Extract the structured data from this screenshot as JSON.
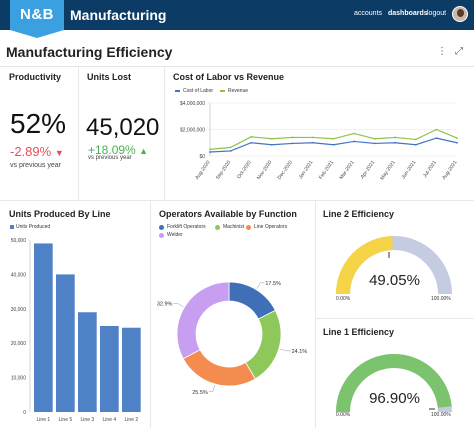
{
  "header": {
    "logo": "N&B",
    "brand": "Manufacturing",
    "nav": [
      "accounts",
      "dashboards",
      "logout"
    ],
    "active_nav": "dashboards",
    "bg_color": "#0c3b66",
    "logo_color": "#3aa0e0"
  },
  "page": {
    "title": "Manufacturing Efficiency",
    "more_icon": "⋮",
    "expand_icon": "⤢"
  },
  "productivity": {
    "title": "Productivity",
    "value": "52%",
    "delta": "-2.89%",
    "arrow": "▼",
    "note": "vs previous year"
  },
  "units_lost": {
    "title": "Units Lost",
    "value": "45,020",
    "delta": "+18.09%",
    "arrow": "▲",
    "note": "vs previous year"
  },
  "labor_chart": {
    "title": "Cost of Labor vs Revenue",
    "legend": [
      "Cost of Labor",
      "Revenue"
    ],
    "y_ticks": [
      "$4,000,000",
      "$2,000,000",
      "$0"
    ]
  },
  "units_chart": {
    "title": "Units Produced By Line",
    "legend": "Units Produced",
    "y_ticks": [
      "50,000",
      "40,000",
      "30,000",
      "20,000",
      "10,000",
      "0"
    ]
  },
  "operators_chart": {
    "title": "Operators Available by Function",
    "legend": [
      "Forklift Operators",
      "Machinist",
      "Line Operators",
      "Welder"
    ],
    "labels": [
      "17.5%",
      "24.1%",
      "25.5%",
      "32.9%"
    ]
  },
  "line2": {
    "title": "Line 2 Efficiency",
    "value": "49.05%",
    "min": "0.00%",
    "max": "100.00%",
    "color": "#f5d547"
  },
  "line1": {
    "title": "Line 1 Efficiency",
    "value": "96.90%",
    "min": "0.00%",
    "max": "100.00%",
    "color": "#7cc36e"
  },
  "chart_data": [
    {
      "type": "line",
      "title": "Cost of Labor vs Revenue",
      "x": [
        "Aug-2020",
        "Sep-2020",
        "Oct-2020",
        "Nov-2020",
        "Dec-2020",
        "Jan-2021",
        "Feb-2021",
        "Mar-2021",
        "Apr-2021",
        "May-2021",
        "Jun-2021",
        "Jul-2021",
        "Aug-2021"
      ],
      "ylim": [
        0,
        4000000
      ],
      "series": [
        {
          "name": "Cost of Labor",
          "color": "#4472c4",
          "values": [
            300000,
            380000,
            1000000,
            850000,
            950000,
            1000000,
            850000,
            1100000,
            950000,
            1000000,
            850000,
            1350000,
            1000000
          ]
        },
        {
          "name": "Revenue",
          "color": "#8bc34a",
          "values": [
            500000,
            650000,
            1450000,
            1300000,
            1400000,
            1400000,
            1300000,
            1700000,
            1300000,
            1400000,
            1250000,
            2000000,
            1350000
          ]
        }
      ]
    },
    {
      "type": "bar",
      "title": "Units Produced By Line",
      "categories": [
        "Line 1",
        "Line 5",
        "Line 3",
        "Line 4",
        "Line 2"
      ],
      "values": [
        49000,
        40000,
        29000,
        25000,
        24500
      ],
      "ylim": [
        0,
        50000
      ],
      "color": "#4f81c7"
    },
    {
      "type": "pie",
      "title": "Operators Available by Function",
      "categories": [
        "Forklift Operators",
        "Machinist",
        "Line Operators",
        "Welder"
      ],
      "values": [
        17.5,
        24.1,
        25.5,
        32.9
      ],
      "colors": [
        "#3f6fb6",
        "#8fc85a",
        "#f48b4f",
        "#c79ef0"
      ]
    }
  ]
}
